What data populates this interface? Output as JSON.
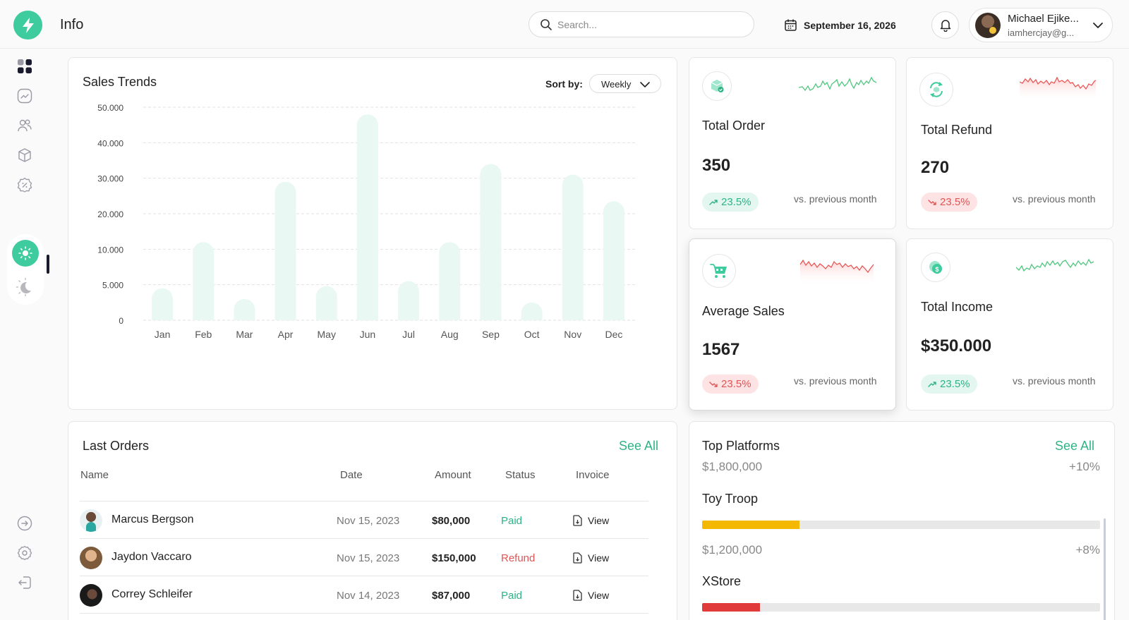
{
  "header": {
    "title": "Info",
    "search_placeholder": "Search...",
    "date": "September 16, 2026",
    "user": {
      "name": "Michael Ejike...",
      "email": "iamhercjay@g..."
    }
  },
  "sidebar": {
    "items": [
      "dashboard-icon",
      "analytics-icon",
      "users-icon",
      "box-icon",
      "discount-icon",
      "info-icon"
    ],
    "active_index": 5,
    "bottom_items": [
      "arrow-right-circle-icon",
      "settings-icon",
      "logout-icon"
    ],
    "theme": "light"
  },
  "sales_trends": {
    "title": "Sales Trends",
    "sort_label": "Sort by:",
    "sort_value": "Weekly"
  },
  "chart_data": {
    "type": "bar",
    "title": "Sales Trends",
    "categories": [
      "Jan",
      "Feb",
      "Mar",
      "Apr",
      "May",
      "Jun",
      "Jul",
      "Aug",
      "Sep",
      "Oct",
      "Nov",
      "Dec"
    ],
    "values": [
      4500,
      12000,
      3000,
      29000,
      4800,
      48000,
      5500,
      12000,
      34000,
      2500,
      31000,
      23500
    ],
    "y_ticks": [
      0,
      5000,
      10000,
      20000,
      30000,
      40000,
      50000
    ],
    "y_tick_labels": [
      "0",
      "5.000",
      "10.000",
      "20.000",
      "30.000",
      "40.000",
      "50.000"
    ],
    "ylim": [
      0,
      50000
    ],
    "grid": true,
    "bar_color": "#eaf8f3"
  },
  "kpis": [
    {
      "title": "Total Order",
      "value": "350",
      "change": "23.5%",
      "trend": "up",
      "compare": "vs. previous month",
      "icon": "box-check-icon"
    },
    {
      "title": "Total Refund",
      "value": "270",
      "change": "23.5%",
      "trend": "down",
      "compare": "vs. previous month",
      "icon": "refund-cycle-icon"
    },
    {
      "title": "Average Sales",
      "value": "1567",
      "change": "23.5%",
      "trend": "down",
      "compare": "vs. previous month",
      "icon": "cart-icon"
    },
    {
      "title": "Total Income",
      "value": "$350.000",
      "change": "23.5%",
      "trend": "up",
      "compare": "vs. previous month",
      "icon": "coin-icon"
    }
  ],
  "orders": {
    "title": "Last Orders",
    "see_all": "See All",
    "columns": [
      "Name",
      "Date",
      "Amount",
      "Status",
      "Invoice"
    ],
    "rows": [
      {
        "name": "Marcus Bergson",
        "date": "Nov 15, 2023",
        "amount": "$80,000",
        "status": "Paid",
        "invoice": "View"
      },
      {
        "name": "Jaydon Vaccaro",
        "date": "Nov 15, 2023",
        "amount": "$150,000",
        "status": "Refund",
        "invoice": "View"
      },
      {
        "name": "Correy Schleifer",
        "date": "Nov 14, 2023",
        "amount": "$87,000",
        "status": "Paid",
        "invoice": "View"
      }
    ]
  },
  "platforms": {
    "title": "Top Platforms",
    "see_all": "See All",
    "items": [
      {
        "amount": "$1,800,000",
        "change": "+10%"
      },
      {
        "name": "Toy Troop",
        "progress": 0.245,
        "color": "#f5b800",
        "amount": "$1,200,000",
        "change": "+8%"
      },
      {
        "name": "XStore",
        "progress": 0.146,
        "color": "#e03a3a"
      }
    ]
  },
  "colors": {
    "accent": "#3ecb9d",
    "positive": "#2fb385",
    "negative": "#e05555"
  }
}
